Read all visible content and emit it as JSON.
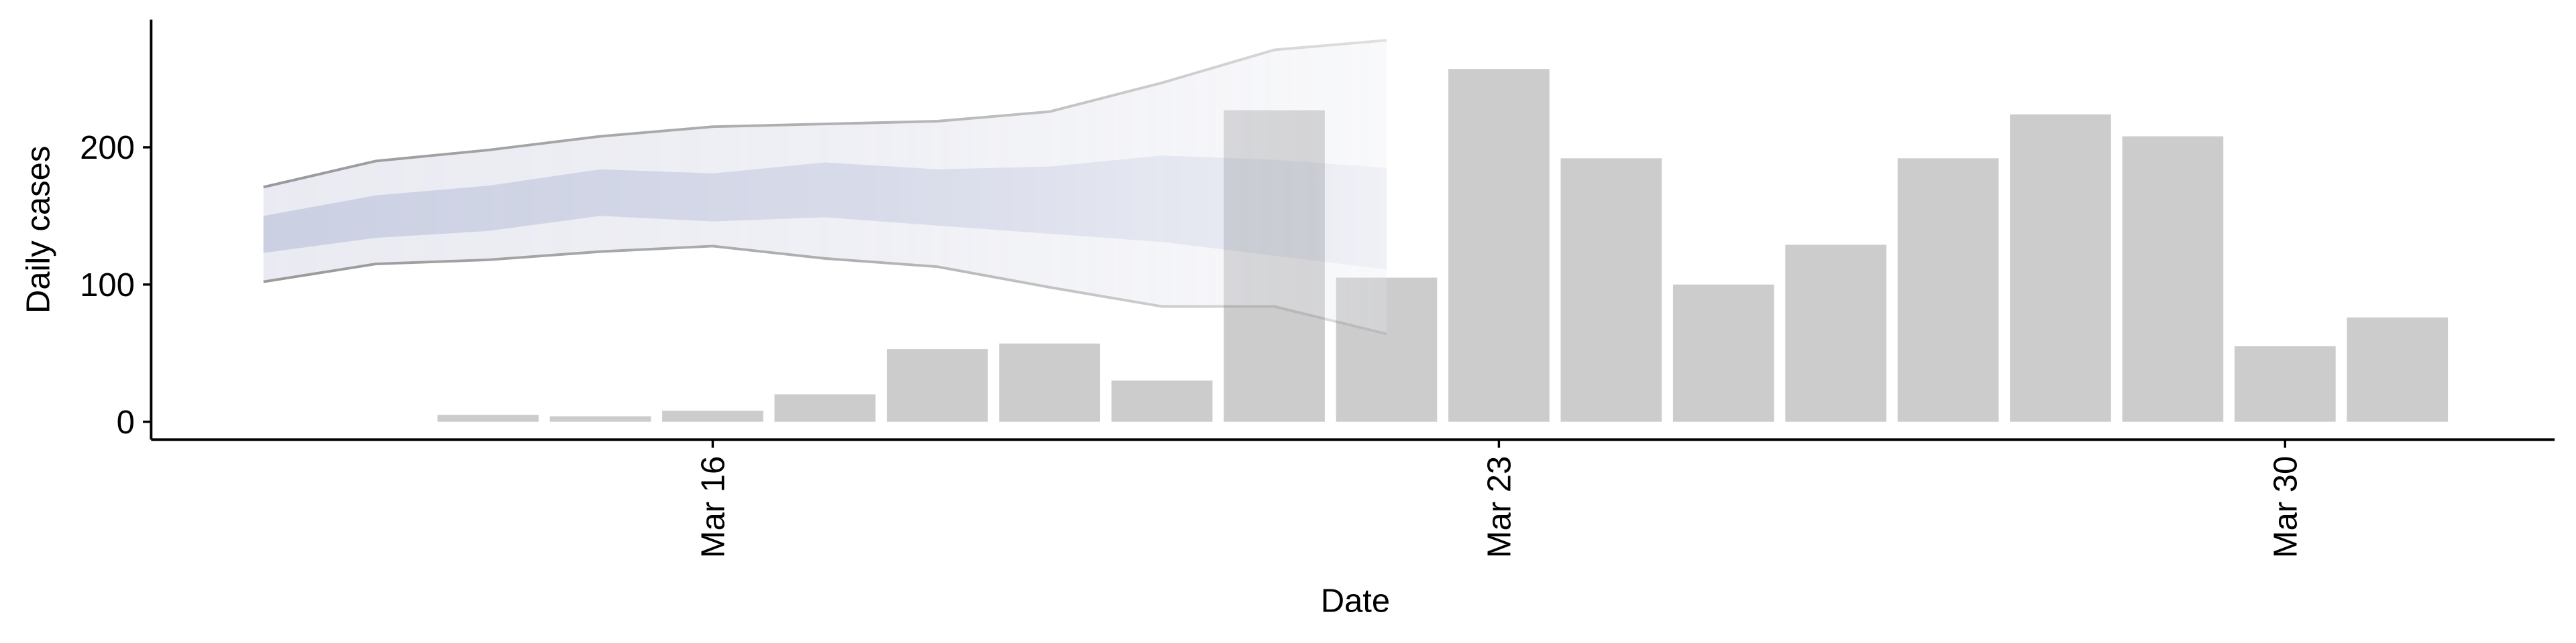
{
  "chart_data": {
    "type": "bar",
    "x_label": "Date",
    "y_label": "Daily cases",
    "x": [
      14,
      15,
      16,
      17,
      18,
      19,
      20,
      21,
      22,
      23,
      24,
      25,
      26,
      27,
      28,
      29,
      30,
      31
    ],
    "values": [
      5,
      4,
      8,
      20,
      53,
      57,
      30,
      227,
      105,
      257,
      192,
      100,
      129,
      192,
      224,
      208,
      55,
      76
    ],
    "color": "#cccccc",
    "ribbon": {
      "x": [
        12,
        13,
        14,
        15,
        16,
        17,
        18,
        19,
        20,
        21,
        22
      ],
      "outer_upper": [
        171,
        190,
        198,
        208,
        215,
        217,
        219,
        226,
        247,
        271,
        278
      ],
      "outer_lower": [
        102,
        115,
        118,
        124,
        128,
        119,
        113,
        98,
        84,
        84,
        64
      ],
      "inner_upper": [
        150,
        165,
        172,
        184,
        181,
        189,
        184,
        186,
        194,
        191,
        185
      ],
      "inner_lower": [
        123,
        134,
        139,
        150,
        146,
        149,
        143,
        137,
        131,
        121,
        111
      ],
      "outer_color": "#e6e8f0",
      "inner_color": "#c5cadf",
      "line_color": "#999999"
    },
    "xlim": [
      11,
      32.4
    ],
    "xticks": [
      {
        "value": 16,
        "label": "Mar 16"
      },
      {
        "value": 23,
        "label": "Mar 23"
      },
      {
        "value": 30,
        "label": "Mar 30"
      }
    ],
    "ylim": [
      -13,
      293
    ],
    "yticks": [
      0,
      100,
      200
    ]
  }
}
